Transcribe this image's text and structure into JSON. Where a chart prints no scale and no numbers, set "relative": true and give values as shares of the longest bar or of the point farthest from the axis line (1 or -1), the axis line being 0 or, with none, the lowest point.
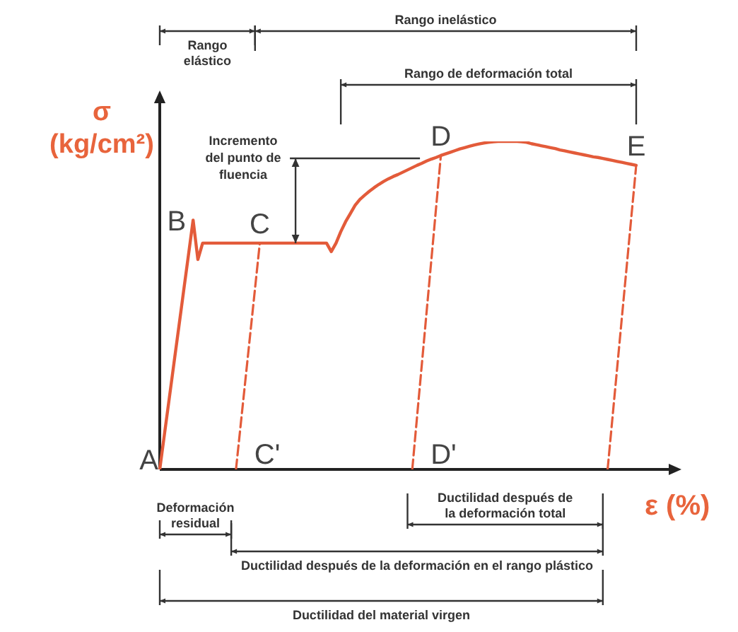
{
  "chart_data": {
    "type": "line",
    "relative": true,
    "tick_labels": false,
    "ylabel": "σ (kg/cm²)",
    "xlabel": "ε (%)",
    "marker": "none",
    "categories": [
      null,
      null,
      null,
      null,
      null,
      null,
      null,
      null,
      null,
      null,
      null,
      null,
      null,
      null,
      null,
      null,
      null,
      null,
      null,
      null,
      null,
      null,
      null,
      null,
      null,
      null,
      null,
      null,
      null,
      null,
      null,
      null,
      null,
      null,
      null,
      null,
      null,
      null,
      null,
      null,
      null,
      null,
      null,
      null,
      null,
      null,
      null,
      null,
      null,
      null,
      null,
      null,
      null,
      null,
      null,
      null,
      null,
      null,
      null,
      null,
      null,
      null,
      null,
      null,
      null,
      null,
      null,
      null,
      null,
      null,
      null,
      null,
      null,
      null,
      null,
      null,
      null,
      null,
      null,
      null,
      null,
      null,
      null,
      null,
      null,
      null,
      null,
      null,
      null,
      null,
      null,
      null,
      null,
      null,
      null,
      null,
      null,
      null,
      null,
      null,
      null
    ],
    "series": [
      {
        "color": "#e35b3a",
        "line_style": "solid",
        "values": [
          0,
          0.109,
          0.217,
          0.326,
          0.434,
          0.543,
          0.651,
          0.76,
          0.64,
          0.69,
          0.69,
          0.69,
          0.69,
          0.69,
          0.69,
          0.69,
          0.69,
          0.69,
          0.69,
          0.69,
          0.69,
          0.69,
          0.69,
          0.69,
          0.69,
          0.69,
          0.69,
          0.69,
          0.69,
          0.69,
          0.69,
          0.69,
          0.69,
          0.69,
          0.69,
          0.69,
          0.664,
          0.69,
          0.725,
          0.755,
          0.78,
          0.805,
          0.823,
          0.836,
          0.848,
          0.859,
          0.869,
          0.878,
          0.886,
          0.893,
          0.899,
          0.906,
          0.913,
          0.92,
          0.927,
          0.933,
          0.94,
          0.946,
          0.951,
          0.957,
          0.962,
          0.967,
          0.972,
          0.977,
          0.981,
          0.985,
          0.989,
          0.992,
          0.995,
          0.997,
          0.999,
          1,
          1,
          1,
          1,
          1,
          0.999,
          0.997,
          0.993,
          0.99,
          0.987,
          0.984,
          0.981,
          0.978,
          0.974,
          0.971,
          0.968,
          0.965,
          0.962,
          0.959,
          0.956,
          0.953,
          0.951,
          0.948,
          0.945,
          0.942,
          0.939,
          0.936,
          0.933,
          0.93,
          0.927
        ]
      },
      {
        "color": "#e35b3a",
        "line_style": "dashed",
        "values": [
          null,
          null,
          null,
          null,
          null,
          null,
          null,
          null,
          null,
          null,
          null,
          null,
          null,
          null,
          null,
          null,
          0,
          0.138,
          0.276,
          0.414,
          0.552,
          0.69,
          null,
          null,
          null,
          null,
          null,
          null,
          null,
          null,
          null,
          null,
          null,
          null,
          null,
          null,
          null,
          null,
          null,
          null,
          null,
          null,
          null,
          null,
          null,
          null,
          null,
          null,
          null,
          null,
          null,
          null,
          null,
          null,
          null,
          null,
          null,
          null,
          null,
          null,
          null,
          null,
          null,
          null,
          null,
          null,
          null,
          null,
          null,
          null,
          null,
          null,
          null,
          null,
          null,
          null,
          null,
          null,
          null,
          null,
          null,
          null,
          null,
          null,
          null,
          null,
          null,
          null,
          null,
          null,
          null,
          null,
          null,
          null,
          null,
          null,
          null,
          null,
          null,
          null,
          null
        ]
      },
      {
        "color": "#e35b3a",
        "line_style": "dashed",
        "values": [
          null,
          null,
          null,
          null,
          null,
          null,
          null,
          null,
          null,
          null,
          null,
          null,
          null,
          null,
          null,
          null,
          null,
          null,
          null,
          null,
          null,
          null,
          null,
          null,
          null,
          null,
          null,
          null,
          null,
          null,
          null,
          null,
          null,
          null,
          null,
          null,
          null,
          null,
          null,
          null,
          null,
          null,
          null,
          null,
          null,
          null,
          null,
          null,
          null,
          null,
          null,
          null,
          null,
          0,
          0.16,
          0.319,
          0.479,
          0.638,
          0.798,
          0.957,
          null,
          null,
          null,
          null,
          null,
          null,
          null,
          null,
          null,
          null,
          null,
          null,
          null,
          null,
          null,
          null,
          null,
          null,
          null,
          null,
          null,
          null,
          null,
          null,
          null,
          null,
          null,
          null,
          null,
          null,
          null,
          null,
          null,
          null,
          null,
          null,
          null,
          null,
          null,
          null,
          null
        ]
      },
      {
        "color": "#e35b3a",
        "line_style": "dashed",
        "values": [
          null,
          null,
          null,
          null,
          null,
          null,
          null,
          null,
          null,
          null,
          null,
          null,
          null,
          null,
          null,
          null,
          null,
          null,
          null,
          null,
          null,
          null,
          null,
          null,
          null,
          null,
          null,
          null,
          null,
          null,
          null,
          null,
          null,
          null,
          null,
          null,
          null,
          null,
          null,
          null,
          null,
          null,
          null,
          null,
          null,
          null,
          null,
          null,
          null,
          null,
          null,
          null,
          null,
          null,
          null,
          null,
          null,
          null,
          null,
          null,
          null,
          null,
          null,
          null,
          null,
          null,
          null,
          null,
          null,
          null,
          null,
          null,
          null,
          null,
          null,
          null,
          null,
          null,
          null,
          null,
          null,
          null,
          null,
          null,
          null,
          null,
          null,
          null,
          null,
          null,
          null,
          null,
          null,
          null,
          0,
          0.155,
          0.309,
          0.464,
          0.618,
          0.773,
          0.927
        ]
      }
    ],
    "annotations": [
      "A",
      "B",
      {
        "text": "C",
        "y": 0.69
      },
      "C'",
      {
        "text": "D",
        "y": 0.957
      },
      "D'",
      {
        "text": "E",
        "y": 0.927
      },
      "Rango inelástico",
      "Rango elástico",
      "Rango de deformación total",
      "Incremento del punto de fluencia",
      "Deformación residual",
      "Ductilidad después de la deformación total",
      "Ductilidad después de la deformación en el rango plástico",
      "Ductilidad del material virgen"
    ]
  }
}
